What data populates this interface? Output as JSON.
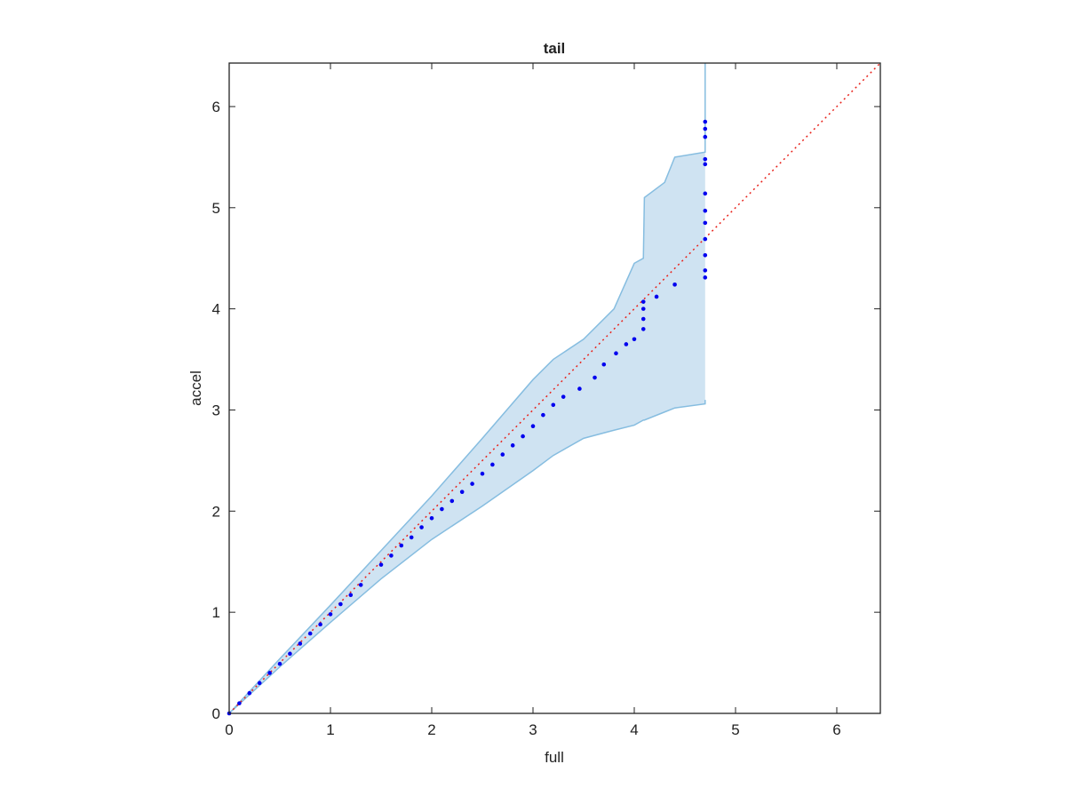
{
  "chart_data": {
    "type": "scatter",
    "title": "tail",
    "x_label": "full",
    "y_label": "accel",
    "xlim": [
      0,
      6.43
    ],
    "ylim": [
      0,
      6.43
    ],
    "xticks": [
      0,
      1,
      2,
      3,
      4,
      5,
      6
    ],
    "yticks": [
      0,
      1,
      2,
      3,
      4,
      5,
      6
    ],
    "grid": false,
    "points": {
      "color": "#0000ee",
      "x": [
        0,
        0.1,
        0.2,
        0.3,
        0.4,
        0.5,
        0.6,
        0.7,
        0.8,
        0.9,
        1.0,
        1.1,
        1.2,
        1.3,
        1.5,
        1.6,
        1.7,
        1.8,
        1.9,
        2.0,
        2.1,
        2.2,
        2.3,
        2.4,
        2.5,
        2.6,
        2.7,
        2.8,
        2.9,
        3.0,
        3.1,
        3.2,
        3.3,
        3.46,
        3.61,
        3.7,
        3.82,
        3.92,
        4.0,
        4.09,
        4.09,
        4.09,
        4.09,
        4.22,
        4.4,
        4.7,
        4.7,
        4.7,
        4.7,
        4.7,
        4.7,
        4.7,
        4.7,
        4.7,
        4.7,
        4.7,
        4.7
      ],
      "y": [
        0,
        0.1,
        0.2,
        0.3,
        0.4,
        0.49,
        0.59,
        0.69,
        0.79,
        0.88,
        0.98,
        1.08,
        1.17,
        1.27,
        1.47,
        1.56,
        1.66,
        1.74,
        1.84,
        1.93,
        2.02,
        2.1,
        2.19,
        2.27,
        2.37,
        2.46,
        2.56,
        2.65,
        2.74,
        2.84,
        2.95,
        3.05,
        3.13,
        3.21,
        3.32,
        3.45,
        3.56,
        3.65,
        3.7,
        3.8,
        3.9,
        4.0,
        4.07,
        4.12,
        4.24,
        4.31,
        4.38,
        4.53,
        4.69,
        4.85,
        4.97,
        5.14,
        5.43,
        5.48,
        5.7,
        5.78,
        5.85
      ]
    },
    "band": {
      "color": "#cfe3f2",
      "edge_color": "#86bde0",
      "x": [
        0,
        0.5,
        1,
        1.5,
        2,
        2.5,
        3,
        3.2,
        3.5,
        3.8,
        4.0,
        4.09,
        4.1,
        4.3,
        4.4,
        4.7,
        4.7
      ],
      "upper": [
        0,
        0.54,
        1.07,
        1.61,
        2.15,
        2.72,
        3.3,
        3.5,
        3.7,
        4.0,
        4.45,
        4.5,
        5.1,
        5.25,
        5.5,
        5.55,
        6.43
      ],
      "lower": [
        0,
        0.46,
        0.9,
        1.33,
        1.72,
        2.05,
        2.4,
        2.55,
        2.72,
        2.8,
        2.85,
        2.9,
        2.9,
        2.98,
        3.02,
        3.06,
        3.1
      ]
    },
    "reference_line": {
      "color": "#e8231c",
      "x": [
        0,
        6.43
      ],
      "y": [
        0,
        6.43
      ]
    }
  }
}
